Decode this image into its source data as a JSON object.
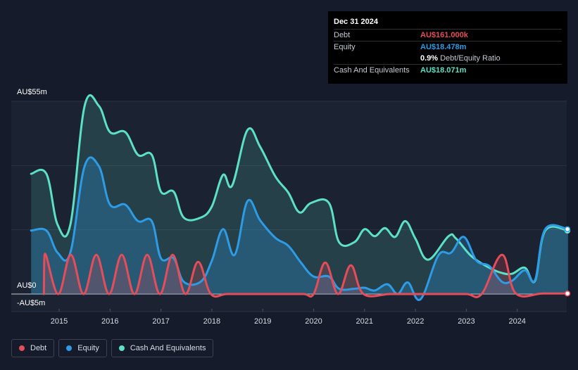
{
  "tooltip": {
    "date": "Dec 31 2024",
    "debt_label": "Debt",
    "debt_value": "AU$161.000k",
    "equity_label": "Equity",
    "equity_value": "AU$18.478m",
    "ratio_value": "0.9%",
    "ratio_label": "Debt/Equity Ratio",
    "cash_label": "Cash And Equivalents",
    "cash_value": "AU$18.071m"
  },
  "legend": [
    {
      "label": "Debt",
      "color": "#e64d5a"
    },
    {
      "label": "Equity",
      "color": "#2d9be6"
    },
    {
      "label": "Cash And Equivalents",
      "color": "#5ce0c6"
    }
  ],
  "colors": {
    "debt": "#e64d5a",
    "equity": "#2d9be6",
    "cash": "#5ce0c6",
    "debt_text": "#e64d5a",
    "equity_text": "#2d9be6",
    "cash_text": "#5ce0c6"
  },
  "chart_data": {
    "type": "area",
    "ylim": [
      -5,
      55
    ],
    "y_ticks": [
      {
        "value": 55,
        "label": "AU$55m"
      },
      {
        "value": 0,
        "label": "AU$0"
      },
      {
        "value": -5,
        "label": "-AU$5m"
      }
    ],
    "x_ticks": [
      {
        "value": 2015,
        "label": "2015"
      },
      {
        "value": 2016,
        "label": "2016"
      },
      {
        "value": 2017,
        "label": "2017"
      },
      {
        "value": 2018,
        "label": "2018"
      },
      {
        "value": 2019,
        "label": "2019"
      },
      {
        "value": 2020,
        "label": "2020"
      },
      {
        "value": 2021,
        "label": "2021"
      },
      {
        "value": 2022,
        "label": "2022"
      },
      {
        "value": 2023,
        "label": "2023"
      },
      {
        "value": 2024,
        "label": "2024"
      }
    ],
    "xlim": [
      2014.45,
      2025.0
    ],
    "series": [
      {
        "name": "Cash And Equivalents",
        "key": "cash",
        "points": [
          [
            2014.45,
            34.3
          ],
          [
            2014.75,
            34.3
          ],
          [
            2014.97,
            19.8
          ],
          [
            2015.22,
            19.8
          ],
          [
            2015.5,
            53.7
          ],
          [
            2015.78,
            53.7
          ],
          [
            2016.0,
            46.2
          ],
          [
            2016.3,
            46.2
          ],
          [
            2016.55,
            39.7
          ],
          [
            2016.82,
            39.7
          ],
          [
            2017.0,
            29.2
          ],
          [
            2017.25,
            29.2
          ],
          [
            2017.45,
            21.8
          ],
          [
            2017.78,
            21.8
          ],
          [
            2018.0,
            25.0
          ],
          [
            2018.22,
            34.0
          ],
          [
            2018.4,
            31.0
          ],
          [
            2018.7,
            46.8
          ],
          [
            2018.95,
            42.0
          ],
          [
            2019.25,
            33.5
          ],
          [
            2019.5,
            29.0
          ],
          [
            2019.72,
            23.3
          ],
          [
            2019.95,
            26.0
          ],
          [
            2020.3,
            26.0
          ],
          [
            2020.5,
            14.8
          ],
          [
            2020.8,
            14.8
          ],
          [
            2021.0,
            18.5
          ],
          [
            2021.2,
            16.5
          ],
          [
            2021.4,
            18.8
          ],
          [
            2021.6,
            16.3
          ],
          [
            2021.8,
            20.8
          ],
          [
            2022.0,
            15.8
          ],
          [
            2022.25,
            9.8
          ],
          [
            2022.65,
            16.5
          ],
          [
            2022.8,
            15.8
          ],
          [
            2023.1,
            10.8
          ],
          [
            2023.45,
            7.5
          ],
          [
            2023.7,
            6.0
          ],
          [
            2023.9,
            5.8
          ],
          [
            2024.15,
            7.5
          ],
          [
            2024.35,
            3.8
          ],
          [
            2024.55,
            18.1
          ],
          [
            2025.0,
            18.1
          ]
        ]
      },
      {
        "name": "Equity",
        "key": "equity",
        "points": [
          [
            2014.45,
            18.1
          ],
          [
            2014.75,
            18.1
          ],
          [
            2014.97,
            11.8
          ],
          [
            2015.22,
            11.8
          ],
          [
            2015.5,
            36.5
          ],
          [
            2015.78,
            36.5
          ],
          [
            2016.0,
            25.5
          ],
          [
            2016.3,
            25.5
          ],
          [
            2016.55,
            20.8
          ],
          [
            2016.82,
            20.8
          ],
          [
            2017.0,
            10.2
          ],
          [
            2017.25,
            10.2
          ],
          [
            2017.45,
            3.5
          ],
          [
            2017.78,
            3.5
          ],
          [
            2018.0,
            9.5
          ],
          [
            2018.22,
            18.5
          ],
          [
            2018.45,
            11.2
          ],
          [
            2018.7,
            26.5
          ],
          [
            2018.95,
            21.0
          ],
          [
            2019.25,
            16.0
          ],
          [
            2019.5,
            13.8
          ],
          [
            2019.75,
            9.0
          ],
          [
            2020.0,
            5.0
          ],
          [
            2020.3,
            5.0
          ],
          [
            2020.5,
            1.5
          ],
          [
            2020.8,
            1.5
          ],
          [
            2021.0,
            1.8
          ],
          [
            2021.2,
            1.0
          ],
          [
            2021.45,
            2.8
          ],
          [
            2021.65,
            0.0
          ],
          [
            2021.85,
            3.3
          ],
          [
            2022.1,
            -1.5
          ],
          [
            2022.45,
            11.0
          ],
          [
            2022.7,
            11.8
          ],
          [
            2022.95,
            16.3
          ],
          [
            2023.2,
            9.5
          ],
          [
            2023.45,
            8.0
          ],
          [
            2023.7,
            3.5
          ],
          [
            2023.9,
            3.8
          ],
          [
            2024.15,
            6.8
          ],
          [
            2024.35,
            4.0
          ],
          [
            2024.55,
            18.5
          ],
          [
            2025.0,
            18.5
          ]
        ]
      },
      {
        "name": "Debt",
        "key": "debt",
        "points": [
          [
            2014.7,
            0
          ],
          [
            2014.72,
            11.5
          ],
          [
            2014.98,
            0
          ],
          [
            2015.23,
            11.2
          ],
          [
            2015.48,
            0
          ],
          [
            2015.73,
            11.2
          ],
          [
            2015.98,
            0
          ],
          [
            2016.23,
            11.2
          ],
          [
            2016.48,
            0
          ],
          [
            2016.73,
            11.2
          ],
          [
            2016.98,
            0
          ],
          [
            2017.23,
            11.2
          ],
          [
            2017.48,
            0
          ],
          [
            2017.73,
            9.2
          ],
          [
            2017.98,
            0
          ],
          [
            2018.3,
            0
          ],
          [
            2018.8,
            0
          ],
          [
            2019.3,
            0
          ],
          [
            2019.8,
            0
          ],
          [
            2020.0,
            0
          ],
          [
            2020.23,
            9.0
          ],
          [
            2020.48,
            0
          ],
          [
            2020.73,
            8.2
          ],
          [
            2020.98,
            0
          ],
          [
            2021.5,
            0
          ],
          [
            2022.0,
            0
          ],
          [
            2022.5,
            0
          ],
          [
            2023.0,
            0
          ],
          [
            2023.3,
            0
          ],
          [
            2023.7,
            11.2
          ],
          [
            2023.97,
            0.2
          ],
          [
            2024.5,
            0.16
          ],
          [
            2025.0,
            0.16
          ]
        ]
      }
    ]
  }
}
